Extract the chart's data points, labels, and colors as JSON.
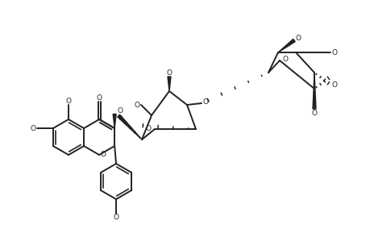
{
  "figsize": [
    4.6,
    3.0
  ],
  "dpi": 100,
  "bg": "#ffffff",
  "lc": "#222222",
  "lw": 1.4,
  "fs": 6.5
}
